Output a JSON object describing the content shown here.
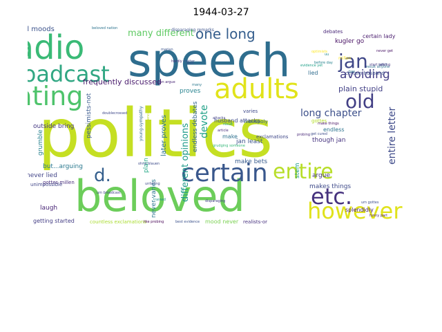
{
  "title": "1944-03-27",
  "words": [
    {
      "text": "politics",
      "color": "#c5df23"
    },
    {
      "text": "speech",
      "color": "#2e6d8e"
    },
    {
      "text": "beloved",
      "color": "#6ccd5a"
    },
    {
      "text": "radio",
      "color": "#3aba76"
    },
    {
      "text": "broadcast",
      "color": "#31a783"
    },
    {
      "text": "eating",
      "color": "#4ec36b"
    },
    {
      "text": "adults",
      "color": "#e1e31a"
    },
    {
      "text": "certain",
      "color": "#39578c"
    },
    {
      "text": "jan",
      "color": "#3f4788"
    },
    {
      "text": "old",
      "color": "#423f85"
    },
    {
      "text": "entire",
      "color": "#b8de29"
    },
    {
      "text": "however",
      "color": "#e0e21c"
    },
    {
      "text": "etc.",
      "color": "#46327e"
    },
    {
      "text": "d.",
      "color": "#355f8d"
    },
    {
      "text": "opinions",
      "color": "#2b748e"
    },
    {
      "text": "one long",
      "color": "#355e8d"
    },
    {
      "text": "avoiding",
      "color": "#433e85"
    },
    {
      "text": "long chapter",
      "color": "#3c4f8a"
    },
    {
      "text": "many different",
      "color": "#5ec962"
    },
    {
      "text": "devote",
      "color": "#1fa187"
    },
    {
      "text": "entire letter",
      "color": "#3e4a89"
    },
    {
      "text": "different opinions",
      "color": "#1f9a8a"
    },
    {
      "text": "frequently discussed",
      "color": "#481a6c"
    },
    {
      "text": "plain stupid",
      "color": "#424086"
    },
    {
      "text": "kugler go",
      "color": "#471063"
    },
    {
      "text": "certain lady",
      "color": "#481b6d"
    },
    {
      "text": "political moods",
      "color": "#3b528b"
    },
    {
      "text": "bring us",
      "color": "#404688"
    },
    {
      "text": "outside bring",
      "color": "#453882"
    },
    {
      "text": "later proves",
      "color": "#2c728e"
    },
    {
      "text": "make bets",
      "color": "#375b8d"
    },
    {
      "text": "jan least",
      "color": "#3b528b"
    },
    {
      "text": "proves",
      "color": "#26828e"
    },
    {
      "text": "endless debates",
      "color": "#32658e"
    },
    {
      "text": "never lied",
      "color": "#414487"
    },
    {
      "text": "laugh",
      "color": "#482576"
    },
    {
      "text": "but...arguing",
      "color": "#2a788e"
    },
    {
      "text": "grumble",
      "color": "#26818e"
    },
    {
      "text": "pessimists-not",
      "color": "#38598c"
    },
    {
      "text": "supreme faith",
      "color": "#2a768e"
    },
    {
      "text": "getting started",
      "color": "#433d84"
    },
    {
      "text": "countless exclamations",
      "color": "#aadc32"
    },
    {
      "text": "mood never",
      "color": "#7ad151"
    },
    {
      "text": "realists-or",
      "color": "#46307e"
    },
    {
      "text": "argue",
      "color": "#453781"
    },
    {
      "text": "makes things",
      "color": "#3e4a89"
    },
    {
      "text": "splendidly",
      "color": "#482374"
    },
    {
      "text": "never varies",
      "color": "#2a768e"
    },
    {
      "text": "plain",
      "color": "#22a785"
    },
    {
      "text": "stem",
      "color": "#1f9e89"
    },
    {
      "text": "though jan",
      "color": "#46337f"
    },
    {
      "text": "endless",
      "color": "#2c738e"
    },
    {
      "text": "husband attacks",
      "color": "#3e4a89"
    },
    {
      "text": "certain husband",
      "color": "#3c508b"
    },
    {
      "text": "lied",
      "color": "#2f6c8e"
    },
    {
      "text": "debates",
      "color": "#482677"
    },
    {
      "text": "varies",
      "color": "#3e4989"
    },
    {
      "text": "make",
      "color": "#2d708e"
    },
    {
      "text": "exclamations",
      "color": "#3f4788"
    },
    {
      "text": "monopoly",
      "color": "#355f8d"
    },
    {
      "text": "gottes",
      "color": "#b5de2b"
    },
    {
      "text": "gottes millen",
      "color": "#472d7b"
    },
    {
      "text": "unimpossible",
      "color": "#404588"
    },
    {
      "text": "disparaging remarks",
      "color": "#3b528b"
    },
    {
      "text": "millen",
      "color": "#fde725"
    },
    {
      "text": "funny part",
      "color": "#481c6e"
    },
    {
      "text": "um gottes",
      "color": "#3d4d8a"
    },
    {
      "text": "uu",
      "color": "#24868e"
    },
    {
      "text": "young-sympathy",
      "color": "#31688e"
    },
    {
      "text": "unfailing patience",
      "color": "#c2df23"
    },
    {
      "text": "like probing",
      "color": "#440154"
    },
    {
      "text": "best evidence",
      "color": "#3b518b"
    },
    {
      "text": "disparaging",
      "color": "#433e85"
    },
    {
      "text": "grudging someone",
      "color": "#35b779"
    },
    {
      "text": "result",
      "color": "#1f9e89"
    },
    {
      "text": "probing",
      "color": "#482878"
    },
    {
      "text": "result anyone",
      "color": "#2e6f8e"
    },
    {
      "text": "start talking",
      "color": "#453882"
    },
    {
      "text": "get cured",
      "color": "#3e4c8a"
    },
    {
      "text": "beloved nation",
      "color": "#2c738e"
    },
    {
      "text": "single question",
      "color": "#277f8e"
    },
    {
      "text": "evidence yet",
      "color": "#1fa088"
    },
    {
      "text": "never get",
      "color": "#471365"
    },
    {
      "text": "attacks",
      "color": "#424186"
    },
    {
      "text": "optimists",
      "color": "#fde725"
    },
    {
      "text": "hardly",
      "color": "#46327e"
    },
    {
      "text": "matter",
      "color": "#3b528b"
    },
    {
      "text": "unfailing",
      "color": "#3e4a89"
    },
    {
      "text": "trained",
      "color": "#21918c"
    },
    {
      "text": "doublecrossed",
      "color": "#3f4889"
    },
    {
      "text": "marian",
      "color": "#3a548c"
    },
    {
      "text": "two",
      "color": "#2d718e"
    },
    {
      "text": "adult",
      "color": "#3d4e8a"
    },
    {
      "text": "article",
      "color": "#472a7a"
    },
    {
      "text": "um broadcast",
      "color": "#414487"
    },
    {
      "text": "make things",
      "color": "#471063"
    },
    {
      "text": "before day",
      "color": "#26828e"
    },
    {
      "text": "jan argue",
      "color": "#482576"
    },
    {
      "text": "also",
      "color": "#3b528b"
    },
    {
      "text": "many",
      "color": "#2a788e"
    },
    {
      "text": "ohne blauen",
      "color": "#3e4c8a"
    }
  ]
}
